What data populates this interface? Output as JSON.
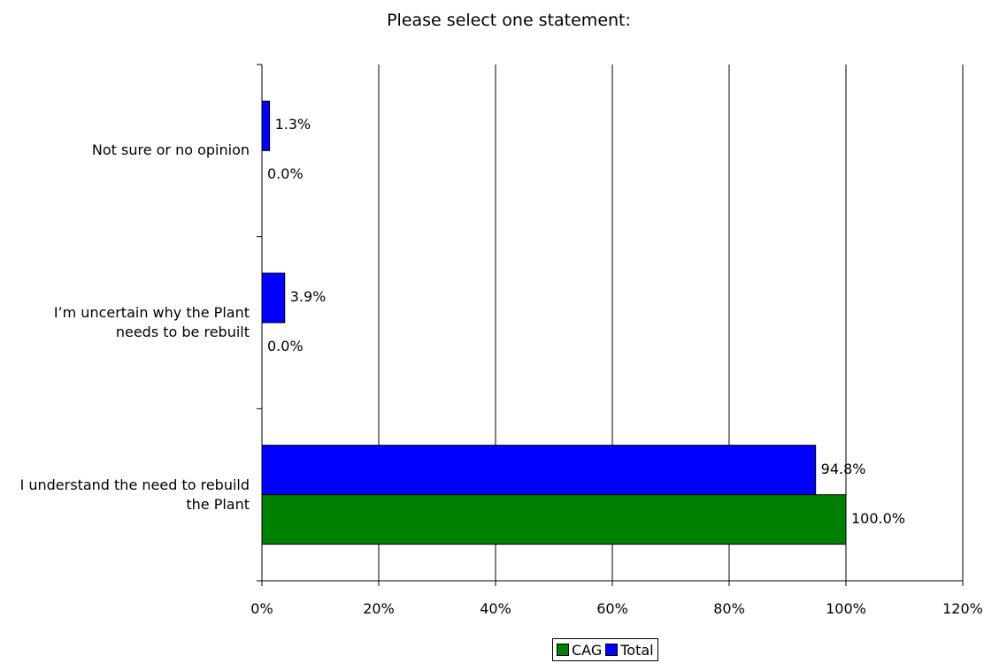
{
  "chart_data": {
    "type": "bar",
    "orientation": "horizontal",
    "title": "Please select one statement:",
    "categories": [
      "Not sure or no opinion",
      "I’m uncertain why the Plant needs to be rebuilt",
      "I understand the need to rebuild the Plant"
    ],
    "series": [
      {
        "name": "Total",
        "color": "#0000ff",
        "values": [
          1.3,
          3.9,
          94.8
        ],
        "labels": [
          "1.3%",
          "3.9%",
          "94.8%"
        ]
      },
      {
        "name": "CAG",
        "color": "#008000",
        "values": [
          0.0,
          0.0,
          100.0
        ],
        "labels": [
          "0.0%",
          "0.0%",
          "100.0%"
        ]
      }
    ],
    "xlim": [
      0,
      120
    ],
    "xticks": [
      "0%",
      "20%",
      "40%",
      "60%",
      "80%",
      "100%",
      "120%"
    ],
    "xtick_values": [
      0,
      20,
      40,
      60,
      80,
      100,
      120
    ],
    "grid": true,
    "legend": {
      "position": "bottom",
      "order": [
        "CAG",
        "Total"
      ]
    }
  }
}
